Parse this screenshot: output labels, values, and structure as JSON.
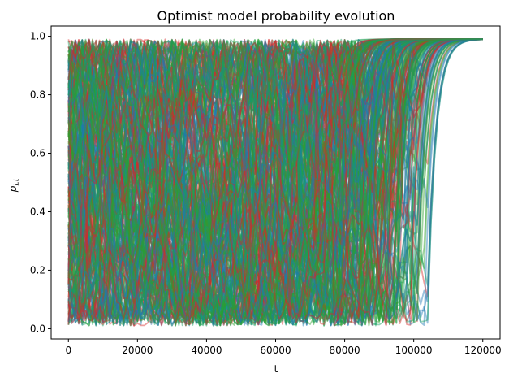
{
  "chart_data": {
    "type": "line",
    "title": "Optimist model probability evolution",
    "xlabel": "t",
    "ylabel": "p_{i,t}",
    "xlim": [
      -5000,
      125000
    ],
    "ylim": [
      -0.035,
      1.035
    ],
    "xticks": [
      0,
      20000,
      40000,
      60000,
      80000,
      100000,
      120000
    ],
    "yticks": [
      0.0,
      0.2,
      0.4,
      0.6,
      0.8,
      1.0
    ],
    "grid": false,
    "legend": "none",
    "colors": {
      "red": "#d62728",
      "blue": "#1f77b4",
      "green": "#2ca02c",
      "teal": "#17a060"
    },
    "series_summary": {
      "trace_count_approx": 300,
      "value_range": [
        0.01,
        0.99
      ],
      "steady_state_value": 0.99,
      "convergence_begins_x": 78000,
      "all_converged_by_x": 105000,
      "x_max": 120000
    }
  }
}
